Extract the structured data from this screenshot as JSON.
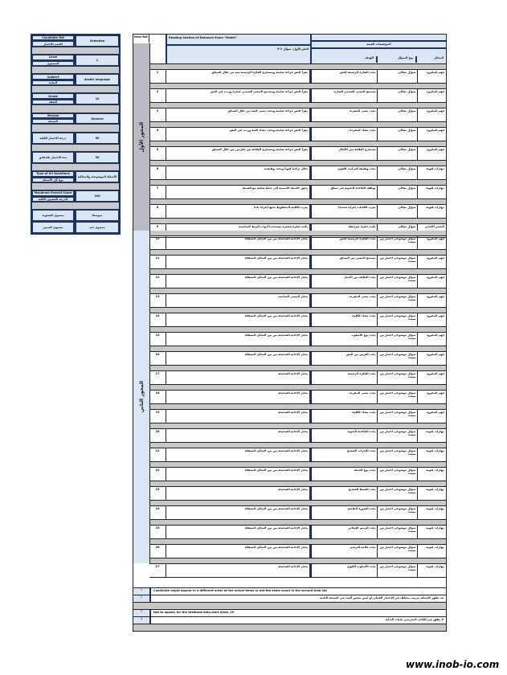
{
  "panel": {
    "rows": [
      {
        "left": [
          "Candidate Ref",
          "الاسم الاختبار"
        ],
        "right": "Selection"
      },
      {
        "sep": true
      },
      {
        "left": [
          "Level",
          "المستوى"
        ],
        "right": "1"
      },
      {
        "sep": true
      },
      {
        "left": [
          "Subject",
          "المادة"
        ],
        "right": "Arabic language"
      },
      {
        "sep": true
      },
      {
        "left": [
          "Grade",
          "الصف"
        ],
        "right": "10"
      },
      {
        "sep": true
      },
      {
        "left": [
          "Version",
          "النسخة"
        ],
        "right": "General"
      },
      {
        "sep": true
      },
      {
        "left": [
          "درجة الاختبار الكلية"
        ],
        "right": "50"
      },
      {
        "sep": true
      },
      {
        "left": [
          "مدة الاختبار بالدقائق"
        ],
        "right": "90"
      },
      {
        "sep": true
      },
      {
        "left": [
          "Type of All Questions",
          "نوع كل الأسئلة"
        ],
        "right": "الأسئلة الموضوعية والمقالية"
      },
      {
        "sep": true
      },
      {
        "left": [
          "Maximum Overall Score",
          "الدرجة القصوى الكلية"
        ],
        "right": "100"
      },
      {
        "sep": true
      },
      {
        "left": [
          "مستوى الصعوبة"
        ],
        "right": "متوسط"
      },
      {
        "left": [
          "مستوى التمييز"
        ],
        "right": "مستوى جيد"
      }
    ]
  },
  "header": {
    "id_label": "Item Ref",
    "question_title": "Reading Section of Entrance Exam \"Model\"",
    "question_sub": "النص الأول: سؤال 1-9",
    "spec_title": "المواصفات الفنية",
    "columns": [
      "الهدف",
      "نوع السؤال",
      "المجال"
    ]
  },
  "sections": [
    {
      "label": "المحور الأول",
      "rows": [
        {
          "n": "1",
          "q": "يقرأ النص قراءة صامتة ويستخرج الفكرة الرئيسة منه من خلال السياق",
          "goal": "يحدد الفكرة الرئيسة للنص",
          "kind": "سؤال مقالي",
          "type": "فهم المقروء"
        },
        {
          "n": "2",
          "q": "يقرأ النص قراءة صامتة ويستنتج المعنى الضمني لعبارة وردت في النص",
          "goal": "يستنتج المعنى الضمني للعبارة",
          "kind": "سؤال مقالي",
          "type": "فهم المقروء"
        },
        {
          "n": "3",
          "q": "يقرأ النص قراءة صامتة ويحدد معنى كلمة من خلال السياق",
          "goal": "يحدد معنى المفردة",
          "kind": "سؤال مقالي",
          "type": "فهم المقروء"
        },
        {
          "n": "4",
          "q": "يقرأ النص قراءة صامتة ويحدد مضاد كلمة وردت في النص",
          "goal": "يحدد مضاد المفردة",
          "kind": "سؤال مقالي",
          "type": "فهم المقروء"
        },
        {
          "n": "5",
          "q": "يقرأ النص قراءة صامتة ويستخرج العلاقة بين فكرتين من خلال السياق",
          "goal": "يستخرج العلاقة بين الأفكار",
          "kind": "سؤال مقالي",
          "type": "فهم المقروء"
        },
        {
          "n": "6",
          "q": "يحلل تركيبا لغويا ويحدد وظيفته",
          "goal": "يحدد وظيفة التركيب اللغوي",
          "kind": "سؤال مقالي",
          "type": "مهارات لغوية"
        },
        {
          "n": "7",
          "q": "يحول الجملة الاسمية إلى جملة فعلية مع الضبط",
          "goal": "يوظف القاعدة النحوية في سياق",
          "kind": "سؤال مقالي",
          "type": "مهارات لغوية"
        },
        {
          "n": "8",
          "q": "يعرب الكلمة المخطوط تحتها إعرابا تاما",
          "goal": "يعرب الكلمات إعرابا صحيحا",
          "kind": "سؤال مقالي",
          "type": "مهارات لغوية"
        },
        {
          "n": "9",
          "q": "يكتب فقرة قصيرة مستخدما أدوات الربط المناسبة",
          "goal": "يكتب فقرة مترابطة",
          "kind": "سؤال مقالي",
          "type": "التعبير الكتابي"
        }
      ]
    },
    {
      "label": "المحور الثاني",
      "rows": [
        {
          "n": "10",
          "q": "يختار الإجابة الصحيحة من بين البدائل المعطاة",
          "goal": "يحدد الفكرة الرئيسة للنص",
          "kind": "سؤال موضوعي اختيار من متعدد",
          "type": "فهم المقروء"
        },
        {
          "n": "11",
          "q": "يختار الإجابة الصحيحة من بين البدائل المعطاة",
          "goal": "يستنتج المعنى من السياق",
          "kind": "سؤال موضوعي اختيار من متعدد",
          "type": "فهم المقروء"
        },
        {
          "n": "12",
          "q": "يختار الإجابة الصحيحة من بين البدائل المعطاة",
          "goal": "يحدد العلاقة بين الجمل",
          "kind": "سؤال موضوعي اختيار من متعدد",
          "type": "فهم المقروء"
        },
        {
          "n": "13",
          "q": "يختار المعنى المناسب",
          "goal": "يحدد معنى المفردة",
          "kind": "سؤال موضوعي اختيار من متعدد",
          "type": "فهم المقروء"
        },
        {
          "n": "14",
          "q": "يختار الإجابة الصحيحة من بين البدائل المعطاة",
          "goal": "يحدد مضاد الكلمة",
          "kind": "سؤال موضوعي اختيار من متعدد",
          "type": "فهم المقروء"
        },
        {
          "n": "15",
          "q": "يختار الإجابة الصحيحة من بين البدائل المعطاة",
          "goal": "يحدد نوع الأسلوب",
          "kind": "سؤال موضوعي اختيار من متعدد",
          "type": "فهم المقروء"
        },
        {
          "n": "16",
          "q": "يختار الإجابة الصحيحة من بين البدائل المعطاة",
          "goal": "يحدد الغرض من النص",
          "kind": "سؤال موضوعي اختيار من متعدد",
          "type": "فهم المقروء"
        },
        {
          "n": "17",
          "q": "يختار الإجابة الصحيحة",
          "goal": "يحدد الفكرة الرئيسة",
          "kind": "سؤال موضوعي اختيار من متعدد",
          "type": "فهم المقروء"
        },
        {
          "n": "18",
          "q": "يختار الإجابة الصحيحة",
          "goal": "يحدد معنى المفردة",
          "kind": "سؤال موضوعي اختيار من متعدد",
          "type": "فهم المقروء"
        },
        {
          "n": "19",
          "q": "يختار الإجابة الصحيحة",
          "goal": "يحدد مضاد الكلمة",
          "kind": "سؤال موضوعي اختيار من متعدد",
          "type": "فهم المقروء"
        },
        {
          "n": "20",
          "q": "يختار الإجابة الصحيحة",
          "goal": "يحدد القاعدة النحوية",
          "kind": "سؤال موضوعي اختيار من متعدد",
          "type": "مهارات لغوية"
        },
        {
          "n": "21",
          "q": "يختار الإجابة الصحيحة من بين البدائل المعطاة",
          "goal": "يحدد الإعراب الصحيح",
          "kind": "سؤال موضوعي اختيار من متعدد",
          "type": "مهارات لغوية"
        },
        {
          "n": "22",
          "q": "يختار الإجابة الصحيحة من بين البدائل المعطاة",
          "goal": "يحدد نوع الجملة",
          "kind": "سؤال موضوعي اختيار من متعدد",
          "type": "مهارات لغوية"
        },
        {
          "n": "23",
          "q": "يختار الإجابة الصحيحة",
          "goal": "يحدد الضبط الصحيح",
          "kind": "سؤال موضوعي اختيار من متعدد",
          "type": "مهارات لغوية"
        },
        {
          "n": "24",
          "q": "يختار الإجابة الصحيحة من بين البدائل المعطاة",
          "goal": "يحدد الصورة البلاغية",
          "kind": "سؤال موضوعي اختيار من متعدد",
          "type": "مهارات لغوية"
        },
        {
          "n": "25",
          "q": "يختار الإجابة الصحيحة من بين البدائل المعطاة",
          "goal": "يحدد الرسم الإملائي",
          "kind": "سؤال موضوعي اختيار من متعدد",
          "type": "مهارات لغوية"
        },
        {
          "n": "26",
          "q": "يختار الإجابة الصحيحة من بين البدائل المعطاة",
          "goal": "يحدد علامة الترقيم",
          "kind": "سؤال موضوعي اختيار من متعدد",
          "type": "مهارات لغوية"
        },
        {
          "n": "27",
          "q": "يختار الإجابة الصحيحة",
          "goal": "يحدد الأسلوب اللغوي",
          "kind": "سؤال موضوعي اختيار من متعدد",
          "type": "مهارات لغوية"
        }
      ]
    }
  ],
  "footer": [
    {
      "n": "1",
      "t": "Candidate might appear in a different order at the actual items or not the same count in the second Arab lab"
    },
    {
      "n": "2",
      "t": "قد تظهر الأسئلة بترتيب مختلف في الاختبار الفعلي أو ليس بنفس العدد في النسخة الثانية"
    },
    {
      "sep": true
    },
    {
      "n": "3",
      "t": "Not to appear for the textbook data start block_10"
    },
    {
      "n": "4",
      "t": "لا يظهر في الكتاب المدرسي بيانات البداية"
    },
    {
      "sep": true
    }
  ],
  "watermark": "www.inob-io.com"
}
